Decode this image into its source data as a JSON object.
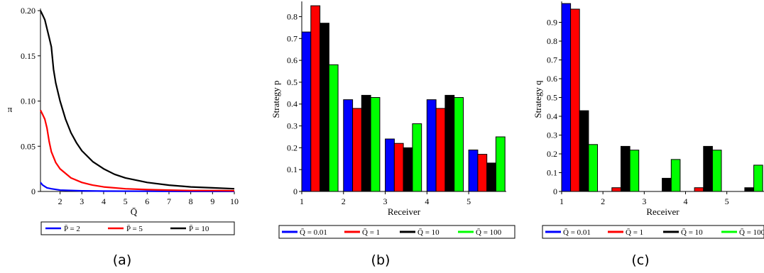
{
  "figure": {
    "captions": [
      "(a)",
      "(b)",
      "(c)"
    ]
  },
  "chart_data": [
    {
      "type": "line",
      "panel": "a",
      "title": "",
      "xlabel": "Q̄",
      "ylabel": "π",
      "xlim": [
        1.1,
        10
      ],
      "ylim": [
        0,
        0.2
      ],
      "xticks": [
        "2",
        "3",
        "4",
        "5",
        "6",
        "7",
        "8",
        "9",
        "10"
      ],
      "yticks": [
        "0",
        "0.05",
        "0.10",
        "0.15",
        "0.20"
      ],
      "grid": false,
      "legend_position": "bottom",
      "series": [
        {
          "name": "P̄ = 2",
          "color": "#0000ff",
          "points": [
            [
              1.1,
              0.01
            ],
            [
              1.2,
              0.007
            ],
            [
              1.4,
              0.004
            ],
            [
              1.6,
              0.003
            ],
            [
              2,
              0.0015
            ],
            [
              3,
              0.0007
            ],
            [
              4,
              0.0004
            ],
            [
              6,
              0.0002
            ],
            [
              8,
              0.0001
            ],
            [
              10,
              0.0001
            ]
          ]
        },
        {
          "name": "P̄ = 5",
          "color": "#ff0000",
          "points": [
            [
              1.1,
              0.09
            ],
            [
              1.2,
              0.085
            ],
            [
              1.3,
              0.08
            ],
            [
              1.4,
              0.07
            ],
            [
              1.5,
              0.055
            ],
            [
              1.6,
              0.044
            ],
            [
              1.8,
              0.032
            ],
            [
              2,
              0.025
            ],
            [
              2.5,
              0.015
            ],
            [
              3,
              0.01
            ],
            [
              3.5,
              0.007
            ],
            [
              4,
              0.005
            ],
            [
              5,
              0.003
            ],
            [
              6,
              0.002
            ],
            [
              7,
              0.0015
            ],
            [
              8,
              0.001
            ],
            [
              9,
              0.001
            ],
            [
              10,
              0.0008
            ]
          ]
        },
        {
          "name": "P̄ = 10",
          "color": "#000000",
          "points": [
            [
              1.1,
              0.2
            ],
            [
              1.2,
              0.195
            ],
            [
              1.3,
              0.19
            ],
            [
              1.4,
              0.18
            ],
            [
              1.5,
              0.17
            ],
            [
              1.6,
              0.16
            ],
            [
              1.7,
              0.135
            ],
            [
              1.8,
              0.12
            ],
            [
              2,
              0.1
            ],
            [
              2.25,
              0.08
            ],
            [
              2.5,
              0.065
            ],
            [
              2.75,
              0.054
            ],
            [
              3,
              0.045
            ],
            [
              3.5,
              0.033
            ],
            [
              4,
              0.025
            ],
            [
              4.5,
              0.019
            ],
            [
              5,
              0.015
            ],
            [
              6,
              0.01
            ],
            [
              7,
              0.007
            ],
            [
              8,
              0.005
            ],
            [
              9,
              0.004
            ],
            [
              10,
              0.003
            ]
          ]
        }
      ]
    },
    {
      "type": "bar",
      "panel": "b",
      "title": "",
      "xlabel": "Receiver",
      "ylabel": "Strategy p",
      "categories": [
        "1",
        "2",
        "3",
        "4",
        "5"
      ],
      "ylim": [
        0,
        0.86
      ],
      "yticks": [
        "0",
        "0.1",
        "0.2",
        "0.3",
        "0.4",
        "0.5",
        "0.6",
        "0.7",
        "0.8"
      ],
      "grid": false,
      "legend_position": "bottom",
      "series": [
        {
          "name": "Q̄ = 0.01",
          "color": "#0000ff",
          "values": [
            0.73,
            0.42,
            0.24,
            0.42,
            0.19
          ]
        },
        {
          "name": "Q̄ = 1",
          "color": "#ff0000",
          "values": [
            0.85,
            0.38,
            0.22,
            0.38,
            0.17
          ]
        },
        {
          "name": "Q̄ = 10",
          "color": "#000000",
          "values": [
            0.77,
            0.44,
            0.2,
            0.44,
            0.13
          ]
        },
        {
          "name": "Q̄ = 100",
          "color": "#00ff00",
          "values": [
            0.58,
            0.43,
            0.31,
            0.43,
            0.25
          ]
        }
      ]
    },
    {
      "type": "bar",
      "panel": "c",
      "title": "",
      "xlabel": "Receiver",
      "ylabel": "Strategy q",
      "categories": [
        "1",
        "2",
        "3",
        "4",
        "5"
      ],
      "ylim": [
        0,
        1.0
      ],
      "yticks": [
        "0",
        "0.1",
        "0.2",
        "0.3",
        "0.4",
        "0.5",
        "0.6",
        "0.7",
        "0.8",
        "0.9"
      ],
      "grid": false,
      "legend_position": "bottom",
      "series": [
        {
          "name": "Q̄ = 0.01",
          "color": "#0000ff",
          "values": [
            1.0,
            0.0,
            0.0,
            0.0,
            0.0
          ]
        },
        {
          "name": "Q̄ = 1",
          "color": "#ff0000",
          "values": [
            0.97,
            0.02,
            0.0,
            0.02,
            0.0
          ]
        },
        {
          "name": "Q̄ = 10",
          "color": "#000000",
          "values": [
            0.43,
            0.24,
            0.07,
            0.24,
            0.02
          ]
        },
        {
          "name": "Q̄ = 100",
          "color": "#00ff00",
          "values": [
            0.25,
            0.22,
            0.17,
            0.22,
            0.14
          ]
        }
      ]
    }
  ]
}
